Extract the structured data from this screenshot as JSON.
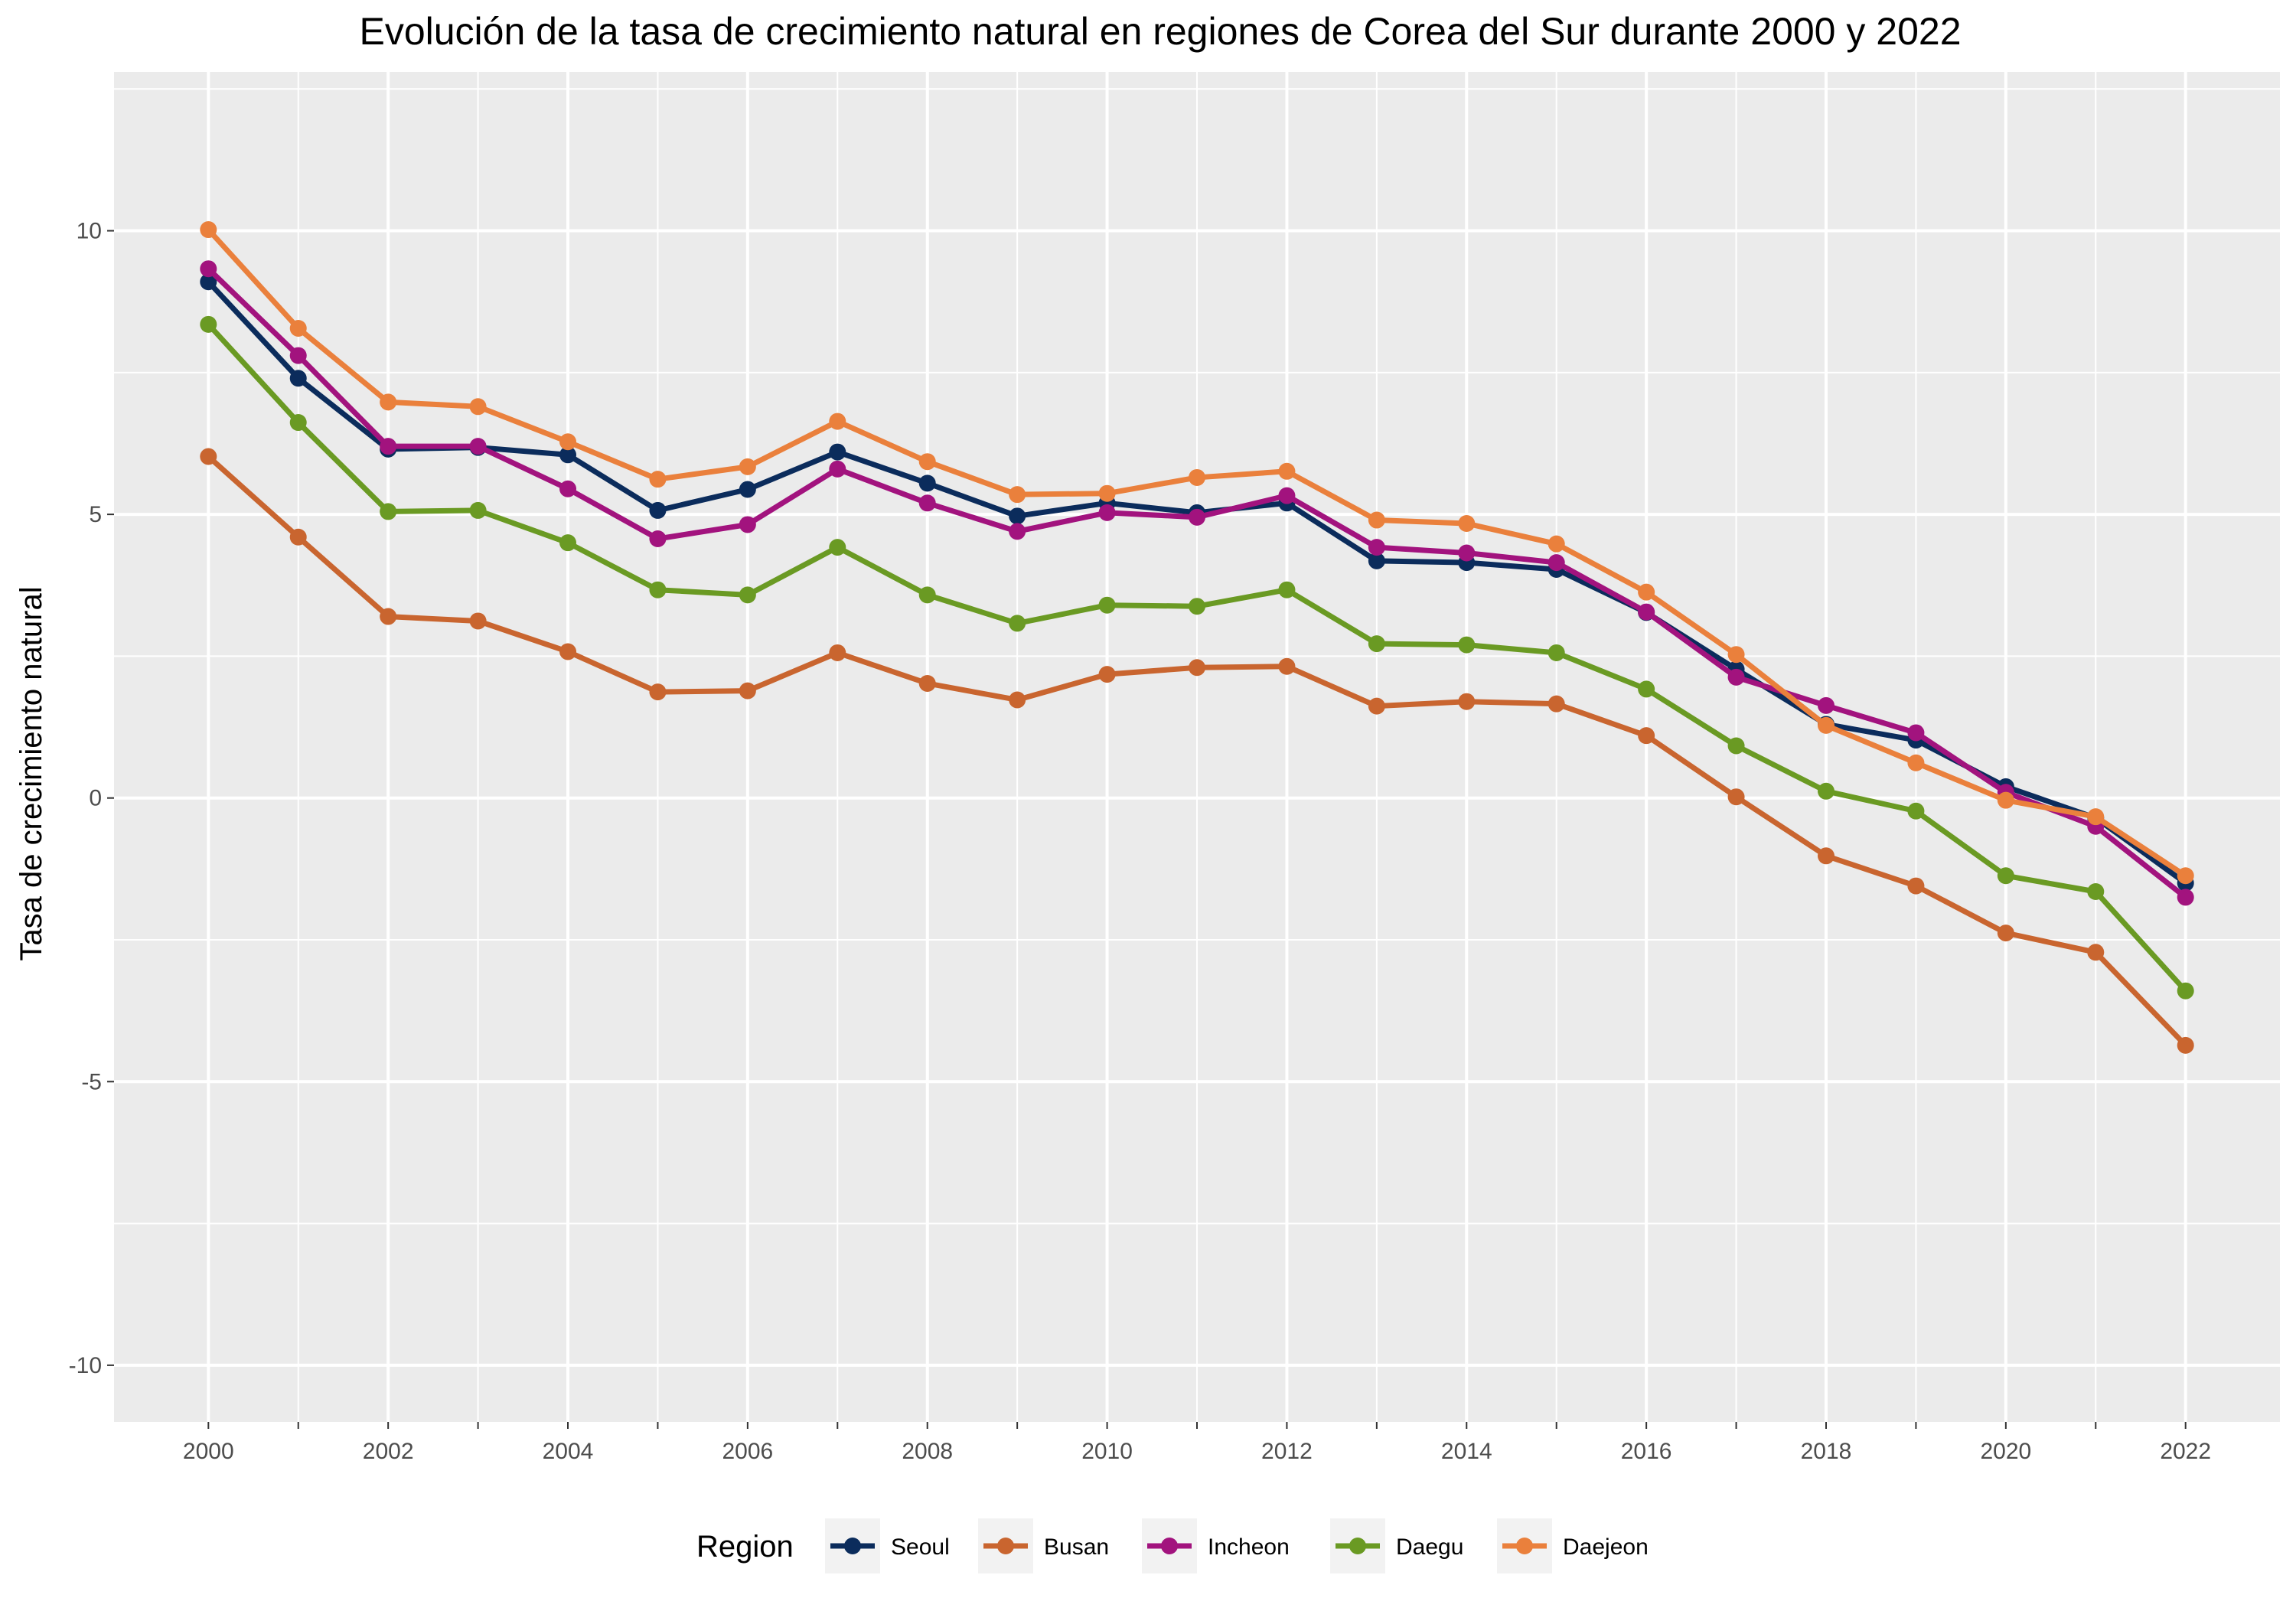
{
  "chart_data": {
    "type": "line",
    "title": "Evolución de la tasa de crecimiento natural en regiones de Corea del Sur durante 2000 y 2022",
    "xlabel": "",
    "ylabel": "Tasa de crecimiento natural",
    "x": [
      2000,
      2001,
      2002,
      2003,
      2004,
      2005,
      2006,
      2007,
      2008,
      2009,
      2010,
      2011,
      2012,
      2013,
      2014,
      2015,
      2016,
      2017,
      2018,
      2019,
      2020,
      2021,
      2022
    ],
    "xlim": [
      1998.95,
      2023.05
    ],
    "ylim": [
      -11,
      12.8
    ],
    "x_ticks": [
      "2000",
      "2002",
      "2004",
      "2006",
      "2008",
      "2010",
      "2012",
      "2014",
      "2016",
      "2018",
      "2020",
      "2022"
    ],
    "y_ticks": [
      "-10",
      "-5",
      "0",
      "5",
      "10"
    ],
    "grid": true,
    "legend": {
      "title": "Region",
      "position": "bottom"
    },
    "series": [
      {
        "name": "Seoul",
        "color": "#0b2c5c",
        "values": [
          9.1,
          7.4,
          6.15,
          6.18,
          6.05,
          5.07,
          5.44,
          6.1,
          5.55,
          4.97,
          5.2,
          5.03,
          5.2,
          4.18,
          4.15,
          4.03,
          3.27,
          2.27,
          1.3,
          1.02,
          0.2,
          -0.35,
          -1.5
        ]
      },
      {
        "name": "Busan",
        "color": "#c9652f",
        "values": [
          6.02,
          4.6,
          3.2,
          3.12,
          2.58,
          1.87,
          1.89,
          2.56,
          2.02,
          1.73,
          2.18,
          2.3,
          2.32,
          1.62,
          1.7,
          1.66,
          1.1,
          0.02,
          -1.02,
          -1.55,
          -2.38,
          -2.72,
          -4.36
        ]
      },
      {
        "name": "Incheon",
        "color": "#a2137e",
        "values": [
          9.33,
          7.8,
          6.2,
          6.2,
          5.45,
          4.57,
          4.82,
          5.8,
          5.2,
          4.7,
          5.03,
          4.95,
          5.33,
          4.42,
          4.32,
          4.15,
          3.28,
          2.13,
          1.63,
          1.15,
          0.1,
          -0.5,
          -1.75
        ]
      },
      {
        "name": "Daegu",
        "color": "#6a9a23",
        "values": [
          8.35,
          6.62,
          5.05,
          5.07,
          4.5,
          3.67,
          3.58,
          4.42,
          3.58,
          3.08,
          3.4,
          3.38,
          3.67,
          2.72,
          2.7,
          2.56,
          1.92,
          0.92,
          0.12,
          -0.23,
          -1.37,
          -1.65,
          -3.4
        ]
      },
      {
        "name": "Daejeon",
        "color": "#ea803c",
        "values": [
          10.02,
          8.28,
          6.98,
          6.9,
          6.28,
          5.62,
          5.84,
          6.64,
          5.93,
          5.35,
          5.37,
          5.65,
          5.76,
          4.9,
          4.84,
          4.48,
          3.63,
          2.53,
          1.28,
          0.62,
          -0.04,
          -0.33,
          -1.37
        ]
      }
    ]
  }
}
